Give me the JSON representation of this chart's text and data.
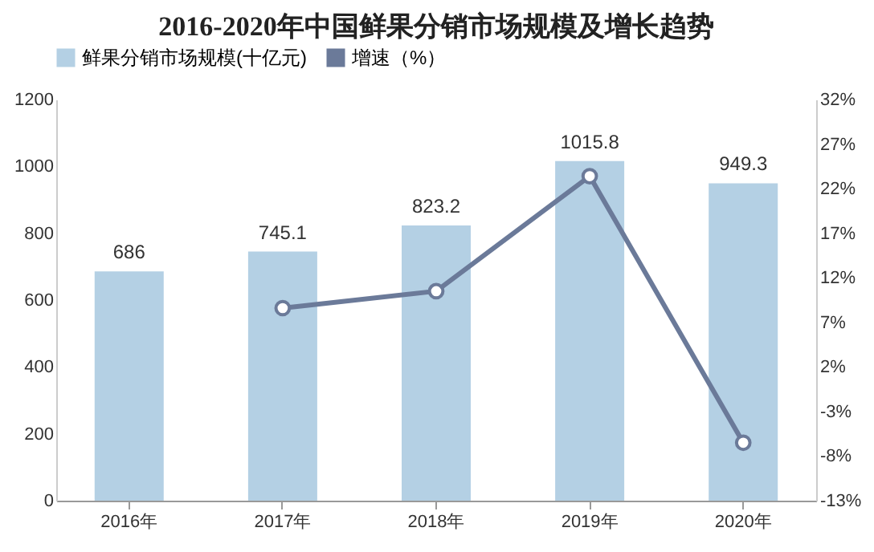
{
  "chart_data": {
    "type": "bar",
    "title": "2016-2020年中国鲜果分销市场规模及增长趋势",
    "categories": [
      "2016年",
      "2017年",
      "2018年",
      "2019年",
      "2020年"
    ],
    "series": [
      {
        "name": "鲜果分销市场规模(十亿元)",
        "color": "#b4d0e4",
        "values": [
          686,
          745.1,
          823.2,
          1015.8,
          949.3
        ],
        "value_labels": [
          "686",
          "745.1",
          "823.2",
          "1015.8",
          "949.3"
        ]
      },
      {
        "name": "增速（%）",
        "type": "line",
        "axis": "y2",
        "color": "#6b7a99",
        "values": [
          null,
          8.6,
          10.5,
          23.4,
          -6.5
        ]
      }
    ],
    "ylim": [
      0,
      1200
    ],
    "yticks": [
      0,
      200,
      400,
      600,
      800,
      1000,
      1200
    ],
    "y2lim": [
      -13,
      32
    ],
    "y2ticks": [
      {
        "value": -13,
        "label": "-13%"
      },
      {
        "value": -8,
        "label": "-8%"
      },
      {
        "value": -3,
        "label": "-3%"
      },
      {
        "value": 2,
        "label": "2%"
      },
      {
        "value": 7,
        "label": "7%"
      },
      {
        "value": 12,
        "label": "12%"
      },
      {
        "value": 17,
        "label": "17%"
      },
      {
        "value": 22,
        "label": "22%"
      },
      {
        "value": 27,
        "label": "27%"
      },
      {
        "value": 32,
        "label": "32%"
      }
    ],
    "legend": "top",
    "marker": "circle",
    "line_style": "solid"
  }
}
